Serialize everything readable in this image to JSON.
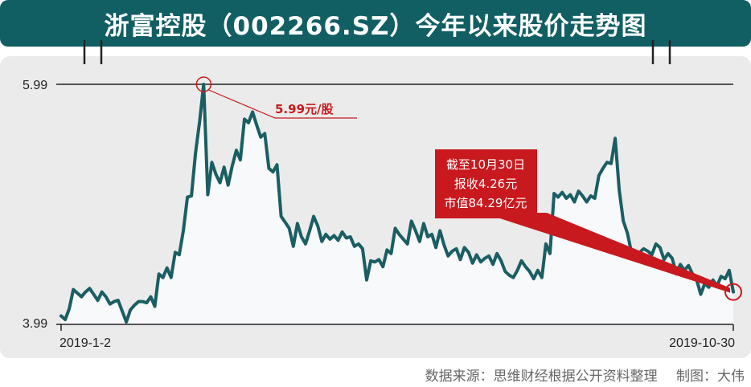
{
  "header": {
    "title": "浙富控股（002266.SZ）今年以来股价走势图"
  },
  "footer": {
    "source": "数据来源：思维财经根据公开资料整理",
    "credit": "制图：大伟"
  },
  "colors": {
    "title_bg": "#115e63",
    "line": "#1a5e63",
    "area": "#f7f9fa",
    "panel": "#ebebeb",
    "annotation_red": "#c8191e"
  },
  "chart_data": {
    "type": "line",
    "title": "浙富控股（002266.SZ）今年以来股价走势图",
    "xlabel": "",
    "ylabel": "",
    "x_tick_labels": [
      "2019-1-2",
      "2019-10-30"
    ],
    "x_range": [
      "2019-01-02",
      "2019-10-30"
    ],
    "y_tick_labels": [
      "5.99",
      "3.99"
    ],
    "ylim": [
      3.99,
      5.99
    ],
    "grid": false,
    "series": [
      {
        "values": [
          4.06,
          4.03,
          4.12,
          4.28,
          4.25,
          4.22,
          4.26,
          4.29,
          4.24,
          4.19,
          4.26,
          4.22,
          4.16,
          4.18,
          4.19,
          4.1,
          4.01,
          4.11,
          4.15,
          4.18,
          4.18,
          4.17,
          4.22,
          4.14,
          4.41,
          4.38,
          4.46,
          4.38,
          4.59,
          4.57,
          4.77,
          5.05,
          5.06,
          5.42,
          5.68,
          5.99,
          5.07,
          5.34,
          5.24,
          5.17,
          5.3,
          5.15,
          5.31,
          5.44,
          5.36,
          5.7,
          5.67,
          5.76,
          5.65,
          5.55,
          5.58,
          5.29,
          5.26,
          5.32,
          4.89,
          4.84,
          4.79,
          4.64,
          4.83,
          4.72,
          4.66,
          4.77,
          4.89,
          4.81,
          4.68,
          4.74,
          4.7,
          4.73,
          4.69,
          4.76,
          4.71,
          4.72,
          4.64,
          4.66,
          4.62,
          4.36,
          4.52,
          4.51,
          4.53,
          4.47,
          4.61,
          4.58,
          4.79,
          4.74,
          4.7,
          4.66,
          4.85,
          4.77,
          4.68,
          4.83,
          4.72,
          4.74,
          4.63,
          4.77,
          4.65,
          4.56,
          4.6,
          4.62,
          4.53,
          4.63,
          4.59,
          4.5,
          4.57,
          4.51,
          4.54,
          4.56,
          4.49,
          4.58,
          4.52,
          4.43,
          4.4,
          4.38,
          4.44,
          4.52,
          4.47,
          4.43,
          4.37,
          4.44,
          4.38,
          4.66,
          4.58,
          5.08,
          5.05,
          5.09,
          5.04,
          5.07,
          5.01,
          5.1,
          5.06,
          5.01,
          5.06,
          5.04,
          5.23,
          5.29,
          5.34,
          5.33,
          5.54,
          5.11,
          4.85,
          4.75,
          4.59,
          4.53,
          4.59,
          4.62,
          4.6,
          4.57,
          4.66,
          4.63,
          4.53,
          4.58,
          4.54,
          4.41,
          4.49,
          4.44,
          4.48,
          4.41,
          4.36,
          4.24,
          4.33,
          4.3,
          4.36,
          4.31,
          4.39,
          4.37,
          4.44,
          4.26
        ]
      }
    ],
    "annotations": [
      {
        "text": "5.99元/股",
        "target": "peak",
        "value": 5.99
      },
      {
        "lines": [
          "截至10月30日",
          "报收4.26元",
          "市值84.29亿元"
        ],
        "target": "last",
        "value": 4.26
      }
    ]
  }
}
